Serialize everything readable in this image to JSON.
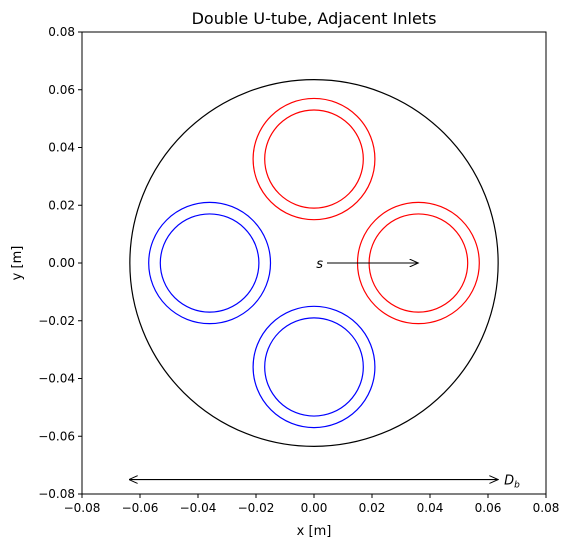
{
  "chart_data": {
    "type": "scatter",
    "title": "Double U-tube, Adjacent Inlets",
    "xlabel": "x [m]",
    "ylabel": "y [m]",
    "xlim": [
      -0.08,
      0.08
    ],
    "ylim": [
      -0.08,
      0.08
    ],
    "xticks": [
      -0.08,
      -0.06,
      -0.04,
      -0.02,
      0.0,
      0.02,
      0.04,
      0.06,
      0.08
    ],
    "yticks": [
      -0.08,
      -0.06,
      -0.04,
      -0.02,
      0.0,
      0.02,
      0.04,
      0.06,
      0.08
    ],
    "tick_labels": [
      "−0.08",
      "−0.06",
      "−0.04",
      "−0.02",
      "0.00",
      "0.02",
      "0.04",
      "0.06",
      "0.08"
    ],
    "grid": false,
    "aspect": "equal",
    "borehole": {
      "center": [
        0,
        0
      ],
      "radius": 0.0635,
      "color": "#000000"
    },
    "pipes": [
      {
        "center": [
          0.036,
          0.0
        ],
        "outer_radius": 0.021,
        "inner_radius": 0.017,
        "color": "#ff0000"
      },
      {
        "center": [
          0.0,
          0.036
        ],
        "outer_radius": 0.021,
        "inner_radius": 0.017,
        "color": "#ff0000"
      },
      {
        "center": [
          -0.036,
          0.0
        ],
        "outer_radius": 0.021,
        "inner_radius": 0.017,
        "color": "#0000ff"
      },
      {
        "center": [
          0.0,
          -0.036
        ],
        "outer_radius": 0.021,
        "inner_radius": 0.017,
        "color": "#0000ff"
      }
    ],
    "annotations": {
      "shank_spacing": {
        "label": "s",
        "from": [
          0.0,
          0.0
        ],
        "to": [
          0.036,
          0.0
        ]
      },
      "borehole_diameter": {
        "label": "D",
        "label_sub": "b",
        "from": [
          -0.0635,
          -0.075
        ],
        "to": [
          0.0635,
          -0.075
        ]
      }
    }
  }
}
